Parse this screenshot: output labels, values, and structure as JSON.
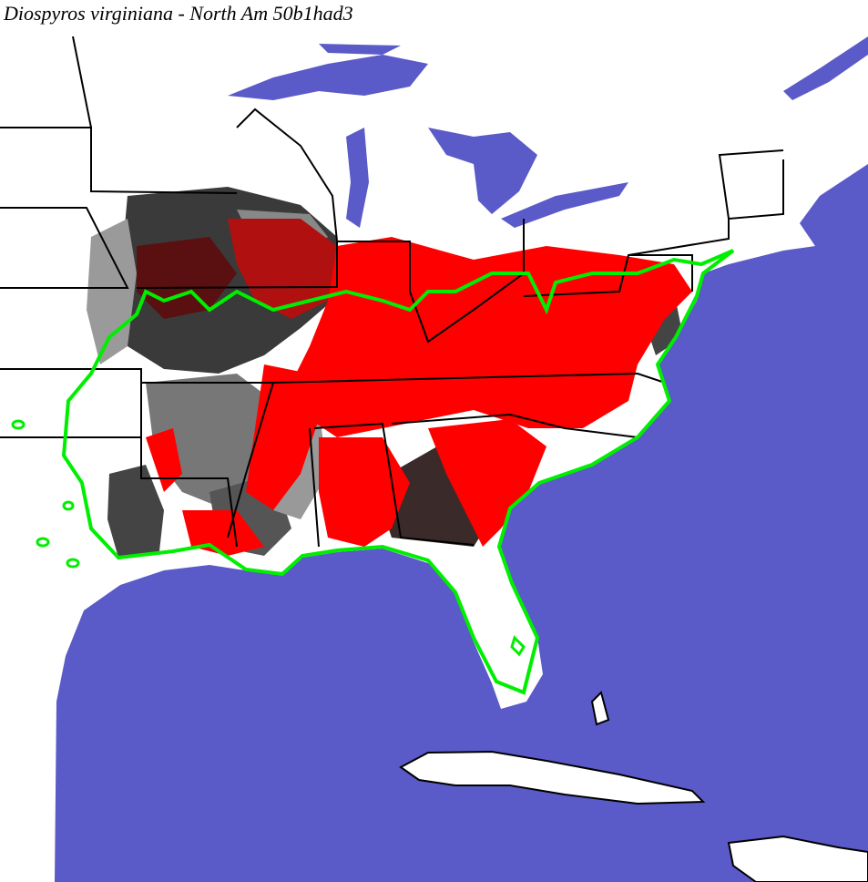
{
  "header": {
    "title": "Diospyros virginiana - North Am 50b1had3"
  }
}
